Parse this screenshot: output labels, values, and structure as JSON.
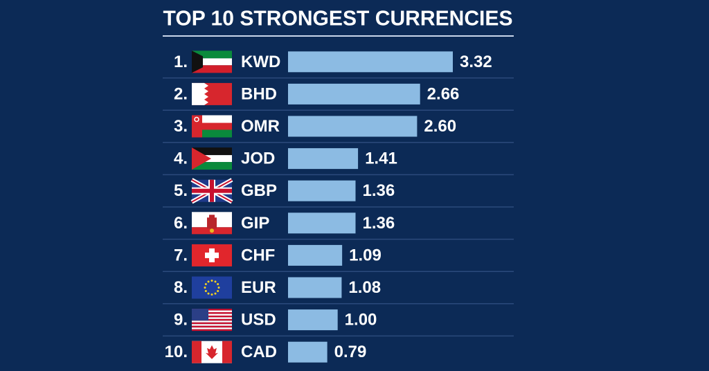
{
  "chart_data": {
    "type": "bar",
    "orientation": "horizontal",
    "title": "TOP 10 STRONGEST CURRENCIES",
    "ranks": [
      "1.",
      "2.",
      "3.",
      "4.",
      "5.",
      "6.",
      "7.",
      "8.",
      "9.",
      "10."
    ],
    "categories": [
      "KWD",
      "BHD",
      "OMR",
      "JOD",
      "GBP",
      "GIP",
      "CHF",
      "EUR",
      "USD",
      "CAD"
    ],
    "values": [
      3.32,
      2.66,
      2.6,
      1.41,
      1.36,
      1.36,
      1.09,
      1.08,
      1.0,
      0.79
    ],
    "value_labels": [
      "3.32",
      "2.66",
      "2.60",
      "1.41",
      "1.36",
      "1.36",
      "1.09",
      "1.08",
      "1.00",
      "0.79"
    ],
    "color": "#8cbbe3"
  }
}
